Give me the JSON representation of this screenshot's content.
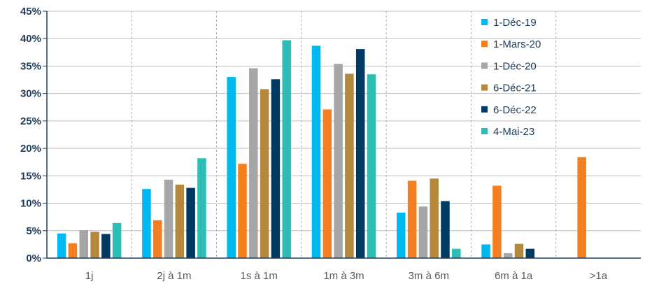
{
  "chart_data": {
    "type": "bar",
    "categories": [
      "1j",
      "2j à 1m",
      "1s à 1m",
      "1m à 3m",
      "3m à 6m",
      "6m à 1a",
      ">1a"
    ],
    "series": [
      {
        "name": "1-Déc-19",
        "color": "#00b8f0",
        "values": [
          4.5,
          12.6,
          33.0,
          38.7,
          8.3,
          2.5,
          0
        ]
      },
      {
        "name": "1-Mars-20",
        "color": "#f47f20",
        "values": [
          2.7,
          6.9,
          17.2,
          27.1,
          14.1,
          13.2,
          18.4
        ]
      },
      {
        "name": "1-Déc-20",
        "color": "#a6a6a6",
        "values": [
          5.1,
          14.3,
          34.6,
          35.4,
          9.4,
          0.9,
          0
        ]
      },
      {
        "name": "6-Déc-21",
        "color": "#b5893d",
        "values": [
          4.8,
          13.4,
          30.8,
          33.6,
          14.5,
          2.6,
          0
        ]
      },
      {
        "name": "6-Déc-22",
        "color": "#003a63",
        "values": [
          4.4,
          12.8,
          32.6,
          38.1,
          10.4,
          1.7,
          0
        ]
      },
      {
        "name": "4-Mai-23",
        "color": "#2ebdb5",
        "values": [
          6.4,
          18.2,
          39.7,
          33.5,
          1.7,
          0,
          0
        ]
      }
    ],
    "yticks": [
      "0%",
      "5%",
      "10%",
      "15%",
      "20%",
      "25%",
      "30%",
      "35%",
      "40%",
      "45%"
    ],
    "ylim": [
      0,
      45
    ],
    "grid": true,
    "legend_position": "top-right",
    "title": "",
    "xlabel": "",
    "ylabel": ""
  }
}
